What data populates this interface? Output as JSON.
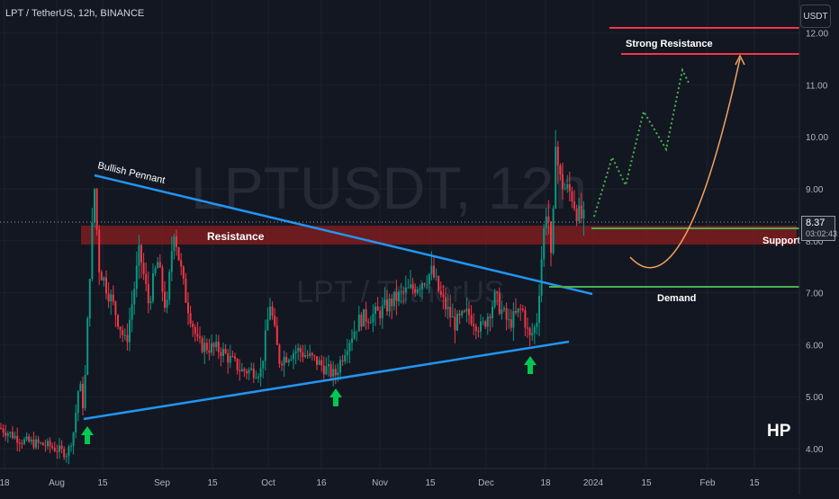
{
  "header": {
    "pair_title": "LPT / TetherUS, 12h, BINANCE"
  },
  "currency_button": "USDT",
  "watermark": {
    "symbol": "LPTUSDT, 12h",
    "name": "LPT / TetherUS"
  },
  "last_price": {
    "value": "8.37",
    "countdown": "03:02:43"
  },
  "branding": "HP",
  "colors": {
    "background": "#131722",
    "up": "#089981",
    "down": "#f23645",
    "accent_line": "#2196f3",
    "resistance": "#f23645",
    "support": "#4caf50"
  },
  "chart_data": {
    "type": "candlestick",
    "title": "LPT / TetherUS, 12h, BINANCE",
    "y_axis": {
      "min": 3.7,
      "max": 12.3,
      "ticks": [
        4.0,
        5.0,
        6.0,
        7.0,
        8.0,
        9.0,
        10.0,
        11.0,
        12.0
      ],
      "tick_labels": [
        "4.00",
        "5.00",
        "6.00",
        "7.00",
        "8.00",
        "9.00",
        "10.00",
        "11.00",
        "12.00"
      ]
    },
    "x_axis": {
      "tick_labels": [
        "18",
        "Aug",
        "15",
        "Sep",
        "15",
        "Oct",
        "16",
        "Nov",
        "15",
        "Dec",
        "18",
        "2024",
        "15",
        "Feb",
        "15"
      ]
    },
    "price_path": [
      [
        0,
        4.4
      ],
      [
        25,
        4.15
      ],
      [
        55,
        4.05
      ],
      [
        75,
        3.9
      ],
      [
        82,
        4.35
      ],
      [
        88,
        5.3
      ],
      [
        93,
        4.75
      ],
      [
        100,
        7.5
      ],
      [
        105,
        9.0
      ],
      [
        110,
        7.5
      ],
      [
        125,
        6.8
      ],
      [
        140,
        6.0
      ],
      [
        155,
        7.8
      ],
      [
        165,
        6.8
      ],
      [
        175,
        7.6
      ],
      [
        185,
        6.6
      ],
      [
        193,
        8.3
      ],
      [
        205,
        7.0
      ],
      [
        220,
        6.0
      ],
      [
        245,
        5.9
      ],
      [
        268,
        5.5
      ],
      [
        290,
        5.5
      ],
      [
        300,
        6.8
      ],
      [
        310,
        5.7
      ],
      [
        330,
        5.9
      ],
      [
        350,
        5.7
      ],
      [
        372,
        5.4
      ],
      [
        385,
        6.0
      ],
      [
        400,
        6.5
      ],
      [
        420,
        6.6
      ],
      [
        440,
        6.9
      ],
      [
        460,
        7.1
      ],
      [
        480,
        7.4
      ],
      [
        490,
        6.9
      ],
      [
        505,
        6.4
      ],
      [
        520,
        6.6
      ],
      [
        535,
        6.3
      ],
      [
        550,
        6.9
      ],
      [
        565,
        6.4
      ],
      [
        580,
        6.7
      ],
      [
        588,
        6.1
      ],
      [
        596,
        6.4
      ],
      [
        603,
        8.0
      ],
      [
        608,
        8.8
      ],
      [
        613,
        7.3
      ],
      [
        617,
        10.1
      ],
      [
        621,
        9.2
      ],
      [
        628,
        9.0
      ],
      [
        635,
        8.9
      ],
      [
        642,
        8.5
      ],
      [
        650,
        8.37
      ]
    ],
    "annotations": {
      "labels": [
        "Bullish Pennant",
        "Resistance",
        "Strong Resistance",
        "Support",
        "Demand"
      ],
      "strong_resistance_levels": [
        12.0,
        11.55
      ],
      "support_level": 8.25,
      "demand_level": 7.1,
      "resistance_zone": [
        7.9,
        8.25
      ],
      "pennant_upper": [
        [
          105,
          9.25
        ],
        [
          658,
          7.0
        ]
      ],
      "pennant_lower": [
        [
          93,
          4.6
        ],
        [
          632,
          6.05
        ]
      ],
      "buy_arrows_at": [
        97,
        373,
        589
      ],
      "projection_up": [
        [
          660,
          8.3
        ],
        [
          680,
          9.3
        ],
        [
          695,
          8.8
        ],
        [
          715,
          10.4
        ],
        [
          740,
          9.8
        ],
        [
          758,
          11.3
        ],
        [
          765,
          11.1
        ]
      ],
      "projection_curve": [
        [
          700,
          7.55
        ],
        [
          760,
          7.05
        ],
        [
          822,
          11.6
        ]
      ]
    },
    "last_value": 8.37
  }
}
